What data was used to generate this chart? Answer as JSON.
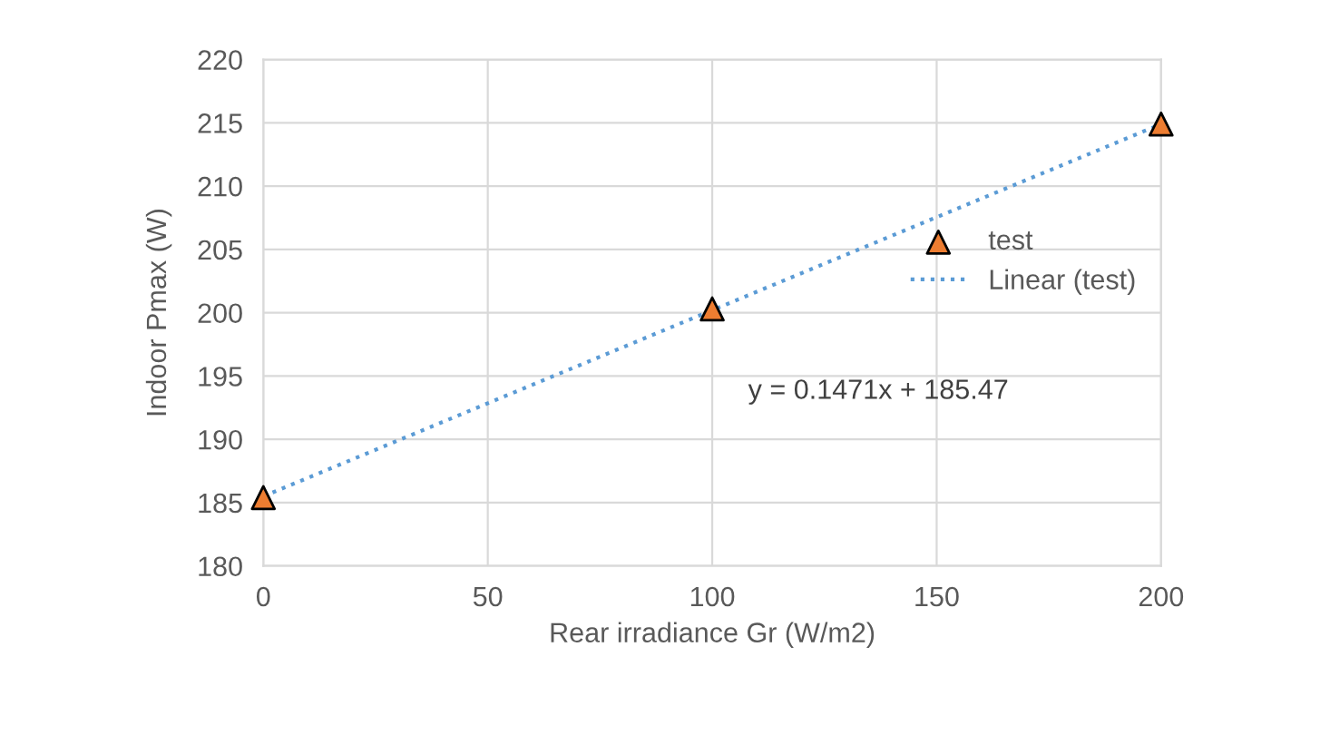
{
  "chart_data": {
    "type": "scatter",
    "xlabel": "Rear irradiance Gr (W/m2)",
    "ylabel": "Indoor Pmax (W)",
    "series": [
      {
        "name": "test",
        "color": "#ed7d31",
        "marker": "triangle",
        "x": [
          0,
          100,
          200
        ],
        "values": [
          185.4,
          200.3,
          214.9
        ]
      },
      {
        "name": "Linear (test)",
        "type": "line",
        "color": "#5b9bd5",
        "marker": "none",
        "line_style": "dotted",
        "x": [
          0,
          200
        ],
        "values": [
          185.5,
          214.9
        ]
      }
    ],
    "xlim": [
      0,
      200
    ],
    "xticks": [
      0,
      50,
      100,
      150,
      200
    ],
    "ylim": [
      180,
      220
    ],
    "yticks": [
      180,
      185,
      190,
      195,
      200,
      205,
      210,
      215,
      220
    ],
    "grid": true,
    "legend": "right",
    "annotations": [
      "y = 0.1471x + 185.47"
    ]
  }
}
